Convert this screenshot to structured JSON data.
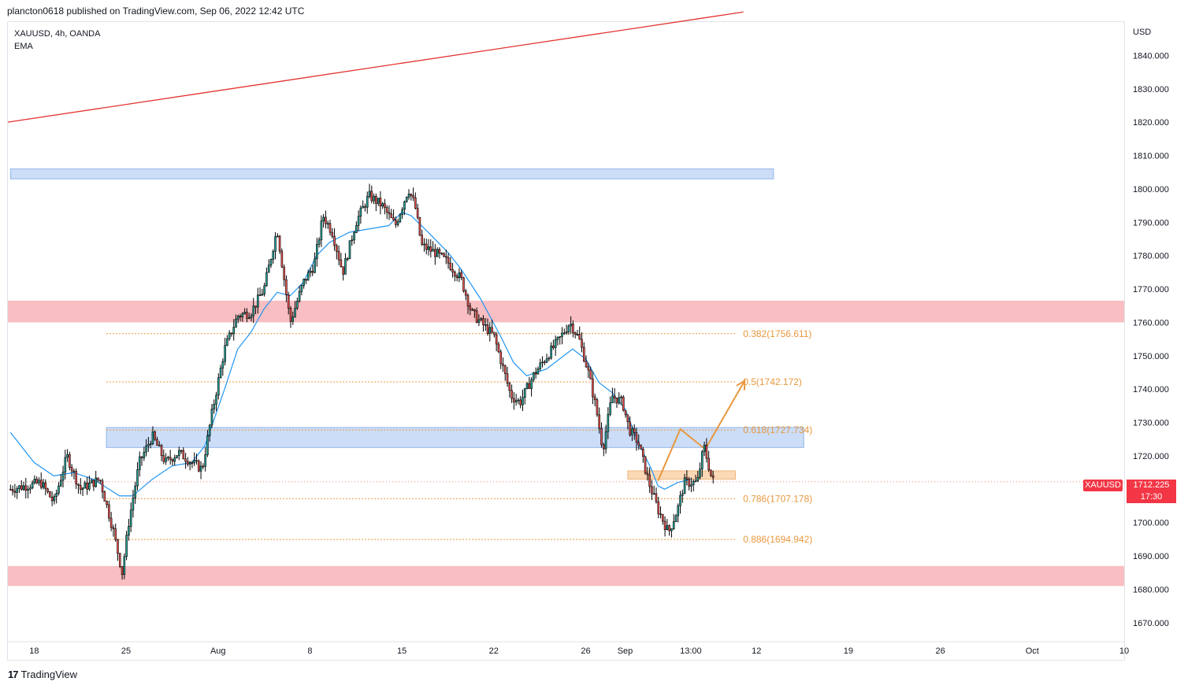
{
  "header": {
    "publisher": "plancton0618 published on TradingView.com, Sep 06, 2022 12:42 UTC"
  },
  "symbol": {
    "title": "XAUUSD, 4h, OANDA",
    "indicator": "EMA"
  },
  "badge": {
    "symbol": "XAUUSD",
    "last_price": "1712.225",
    "countdown": "17:30"
  },
  "brand": {
    "logo": "17",
    "name": "TradingView"
  },
  "colors": {
    "up": "#26a69a",
    "down": "#ef5350",
    "ema": "#2196f3",
    "fib": "#e8983e",
    "zone_red": "#f8bbbf",
    "zone_blue": "#c9dcf7",
    "trend": "#e3342f"
  },
  "chart_data": {
    "type": "candlestick",
    "title": "XAUUSD, 4h, OANDA",
    "currency_label": "USD",
    "y_ticks": [
      1670,
      1680,
      1690,
      1700,
      1710,
      1720,
      1730,
      1740,
      1750,
      1760,
      1770,
      1780,
      1790,
      1800,
      1810,
      1820,
      1830,
      1840
    ],
    "y_tick_labels": [
      "1670.000",
      "1680.000",
      "1690.000",
      "1700.000",
      "1710.000",
      "1720.000",
      "1730.000",
      "1740.000",
      "1750.000",
      "1760.000",
      "1770.000",
      "1780.000",
      "1790.000",
      "1800.000",
      "1810.000",
      "1820.000",
      "1830.000",
      "1840.000"
    ],
    "ylim": [
      1665,
      1850
    ],
    "x_ticks": [
      {
        "label": "18",
        "day": 0
      },
      {
        "label": "25",
        "day": 7
      },
      {
        "label": "Aug",
        "day": 14
      },
      {
        "label": "8",
        "day": 21
      },
      {
        "label": "15",
        "day": 28
      },
      {
        "label": "22",
        "day": 35
      },
      {
        "label": "26",
        "day": 42
      },
      {
        "label": "Sep",
        "day": 45
      },
      {
        "label": "13:00",
        "day": 50
      },
      {
        "label": "12",
        "day": 55
      },
      {
        "label": "19",
        "day": 62
      },
      {
        "label": "26",
        "day": 69
      },
      {
        "label": "Oct",
        "day": 76
      },
      {
        "label": "10",
        "day": 83
      }
    ],
    "xlim": [
      -2,
      83
    ],
    "price_path": [
      [
        -1.8,
        1710
      ],
      [
        0.5,
        1712
      ],
      [
        1.5,
        1706
      ],
      [
        2.5,
        1720
      ],
      [
        3.5,
        1710
      ],
      [
        5,
        1713
      ],
      [
        6,
        1698
      ],
      [
        6.7,
        1685
      ],
      [
        7.2,
        1700
      ],
      [
        8,
        1718
      ],
      [
        9,
        1726
      ],
      [
        10,
        1718
      ],
      [
        11,
        1721
      ],
      [
        12,
        1718
      ],
      [
        12.8,
        1716
      ],
      [
        13.5,
        1732
      ],
      [
        14.5,
        1752
      ],
      [
        15.5,
        1762
      ],
      [
        16.5,
        1763
      ],
      [
        17.5,
        1770
      ],
      [
        18.5,
        1788
      ],
      [
        19,
        1774
      ],
      [
        19.5,
        1760
      ],
      [
        20.5,
        1772
      ],
      [
        21.3,
        1777
      ],
      [
        22,
        1792
      ],
      [
        22.7,
        1787
      ],
      [
        23.5,
        1775
      ],
      [
        24.5,
        1790
      ],
      [
        25.5,
        1798
      ],
      [
        26.5,
        1795
      ],
      [
        27.5,
        1789
      ],
      [
        28.5,
        1800
      ],
      [
        29,
        1795
      ],
      [
        29.5,
        1783
      ],
      [
        30.5,
        1781
      ],
      [
        31.5,
        1778
      ],
      [
        32.5,
        1773
      ],
      [
        33.3,
        1763
      ],
      [
        34,
        1760
      ],
      [
        35,
        1756
      ],
      [
        35.8,
        1745
      ],
      [
        36.3,
        1738
      ],
      [
        37,
        1736
      ],
      [
        38,
        1744
      ],
      [
        38.7,
        1748
      ],
      [
        40,
        1755
      ],
      [
        40.8,
        1760
      ],
      [
        41.5,
        1755
      ],
      [
        42.2,
        1745
      ],
      [
        42.8,
        1734
      ],
      [
        43.3,
        1722
      ],
      [
        44,
        1738
      ],
      [
        44.8,
        1736
      ],
      [
        45.3,
        1728
      ],
      [
        46,
        1724
      ],
      [
        46.8,
        1712
      ],
      [
        47.5,
        1704
      ],
      [
        48.3,
        1697
      ],
      [
        49,
        1704
      ],
      [
        49.5,
        1712
      ],
      [
        50,
        1712
      ],
      [
        50.5,
        1712
      ],
      [
        51,
        1723
      ],
      [
        51.6,
        1713
      ],
      [
        51.8,
        1712
      ]
    ],
    "ema_path": [
      [
        -1.8,
        1727
      ],
      [
        0,
        1718
      ],
      [
        1.5,
        1714
      ],
      [
        3,
        1715
      ],
      [
        4.5,
        1713
      ],
      [
        6.5,
        1708
      ],
      [
        7.5,
        1708
      ],
      [
        9,
        1713
      ],
      [
        10.5,
        1717
      ],
      [
        12,
        1718
      ],
      [
        13,
        1723
      ],
      [
        14.5,
        1740
      ],
      [
        15.5,
        1752
      ],
      [
        16.5,
        1757
      ],
      [
        17.5,
        1764
      ],
      [
        18.5,
        1769
      ],
      [
        19.5,
        1768
      ],
      [
        20.5,
        1772
      ],
      [
        21.5,
        1780
      ],
      [
        22.5,
        1784
      ],
      [
        24,
        1787
      ],
      [
        25.5,
        1788
      ],
      [
        27,
        1789
      ],
      [
        28,
        1793
      ],
      [
        28.7,
        1792
      ],
      [
        30,
        1787
      ],
      [
        31.5,
        1781
      ],
      [
        32.5,
        1776
      ],
      [
        34,
        1767
      ],
      [
        35.5,
        1756
      ],
      [
        36.5,
        1748
      ],
      [
        37.5,
        1744
      ],
      [
        39,
        1746
      ],
      [
        40,
        1749
      ],
      [
        41,
        1752
      ],
      [
        42,
        1749
      ],
      [
        43,
        1742
      ],
      [
        44,
        1739
      ],
      [
        45,
        1734
      ],
      [
        46,
        1724
      ],
      [
        47,
        1716
      ],
      [
        47.5,
        1711
      ],
      [
        48,
        1710
      ],
      [
        49,
        1712
      ],
      [
        50,
        1713
      ]
    ],
    "support_resistance_zones": [
      {
        "color": "red",
        "low": 1760,
        "high": 1766.5,
        "x_start": -2,
        "x_end": 83
      },
      {
        "color": "red",
        "low": 1681,
        "high": 1687,
        "x_start": -2,
        "x_end": 83
      },
      {
        "color": "blue",
        "low": 1803,
        "high": 1806,
        "x_start": -1.8,
        "x_end": 56.3
      },
      {
        "color": "blue",
        "low": 1722.5,
        "high": 1728.5,
        "x_start": 5.5,
        "x_end": 58.6
      },
      {
        "color": "orange",
        "low": 1713,
        "high": 1715.5,
        "x_start": 45.2,
        "x_end": 53.4
      }
    ],
    "fibonacci_levels": [
      {
        "label": "0.382(1756.611)",
        "value": 1756.611
      },
      {
        "label": "0.5(1742.172)",
        "value": 1742.172
      },
      {
        "label": "0.618(1727.734)",
        "value": 1727.734
      },
      {
        "label": "0.786(1707.178)",
        "value": 1707.178
      },
      {
        "label": "0.886(1694.942)",
        "value": 1694.942
      }
    ],
    "fib_x_range": [
      5.5,
      53.5
    ],
    "trendline": [
      [
        -2,
        1820
      ],
      [
        54,
        1853
      ]
    ],
    "projection_path": [
      [
        47.5,
        1712.5
      ],
      [
        49.2,
        1728
      ],
      [
        51.1,
        1722
      ],
      [
        54.1,
        1742.5
      ]
    ],
    "last_price": 1712.225
  }
}
